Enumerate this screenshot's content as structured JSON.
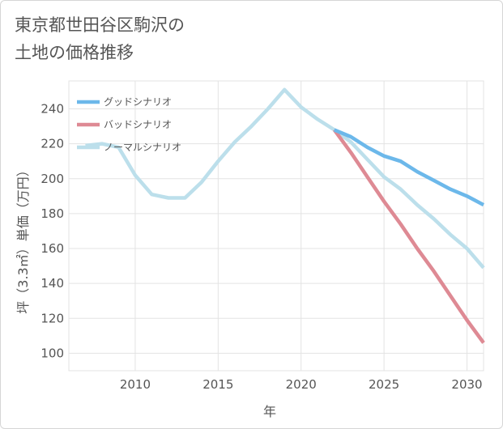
{
  "chart_data": {
    "type": "line",
    "title": "東京都世田谷区駒沢の\n土地の価格推移",
    "xlabel": "年",
    "ylabel": "坪（3.3㎡）単価（万円）",
    "xlim": [
      2006,
      2031
    ],
    "ylim": [
      90,
      256
    ],
    "x_ticks": [
      2010,
      2015,
      2020,
      2025,
      2030
    ],
    "y_ticks": [
      100,
      120,
      140,
      160,
      180,
      200,
      220,
      240
    ],
    "legend_position": "top-left",
    "series": [
      {
        "name": "グッドシナリオ",
        "color": "#6cb8ea",
        "x": [
          2022,
          2023,
          2024,
          2025,
          2026,
          2027,
          2028,
          2029,
          2030,
          2031
        ],
        "values": [
          228,
          224,
          218,
          213,
          210,
          204,
          199,
          194,
          190,
          185
        ]
      },
      {
        "name": "バッドシナリオ",
        "color": "#de8a94",
        "x": [
          2022,
          2023,
          2024,
          2025,
          2026,
          2027,
          2028,
          2029,
          2030,
          2031
        ],
        "values": [
          228,
          215,
          201,
          187,
          174,
          160,
          147,
          133,
          119,
          106
        ]
      },
      {
        "name": "ノーマルシナリオ",
        "color": "#bcdfeb",
        "x": [
          2007,
          2008,
          2009,
          2010,
          2011,
          2012,
          2013,
          2014,
          2015,
          2016,
          2017,
          2018,
          2019,
          2020,
          2021,
          2022,
          2023,
          2024,
          2025,
          2026,
          2027,
          2028,
          2029,
          2030,
          2031
        ],
        "values": [
          219,
          220,
          218,
          202,
          191,
          189,
          189,
          198,
          210,
          221,
          230,
          240,
          251,
          241,
          234,
          228,
          221,
          211,
          201,
          194,
          185,
          177,
          168,
          160,
          149
        ]
      }
    ]
  }
}
